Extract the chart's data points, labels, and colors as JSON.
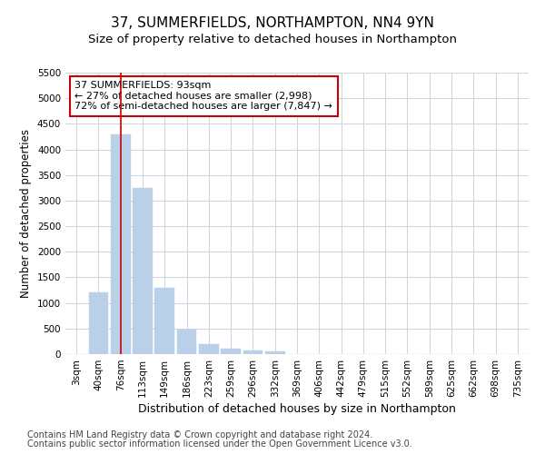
{
  "title": "37, SUMMERFIELDS, NORTHAMPTON, NN4 9YN",
  "subtitle": "Size of property relative to detached houses in Northampton",
  "xlabel": "Distribution of detached houses by size in Northampton",
  "ylabel": "Number of detached properties",
  "bar_labels": [
    "3sqm",
    "40sqm",
    "76sqm",
    "113sqm",
    "149sqm",
    "186sqm",
    "223sqm",
    "259sqm",
    "296sqm",
    "332sqm",
    "369sqm",
    "406sqm",
    "442sqm",
    "479sqm",
    "515sqm",
    "552sqm",
    "589sqm",
    "625sqm",
    "662sqm",
    "698sqm",
    "735sqm"
  ],
  "bar_values": [
    0,
    1200,
    4300,
    3250,
    1300,
    480,
    200,
    100,
    75,
    50,
    0,
    0,
    0,
    0,
    0,
    0,
    0,
    0,
    0,
    0,
    0
  ],
  "bar_color": "#bad0e8",
  "bar_edgecolor": "#bad0e8",
  "highlight_bar_index": 2,
  "highlight_line_color": "#cc0000",
  "annotation_line1": "37 SUMMERFIELDS: 93sqm",
  "annotation_line2": "← 27% of detached houses are smaller (2,998)",
  "annotation_line3": "72% of semi-detached houses are larger (7,847) →",
  "ylim": [
    0,
    5500
  ],
  "yticks": [
    0,
    500,
    1000,
    1500,
    2000,
    2500,
    3000,
    3500,
    4000,
    4500,
    5000,
    5500
  ],
  "footer_line1": "Contains HM Land Registry data © Crown copyright and database right 2024.",
  "footer_line2": "Contains public sector information licensed under the Open Government Licence v3.0.",
  "background_color": "#ffffff",
  "grid_color": "#ccd5e0",
  "title_fontsize": 11,
  "subtitle_fontsize": 9.5,
  "xlabel_fontsize": 9,
  "ylabel_fontsize": 8.5,
  "tick_fontsize": 7.5,
  "annotation_fontsize": 8,
  "footer_fontsize": 7
}
